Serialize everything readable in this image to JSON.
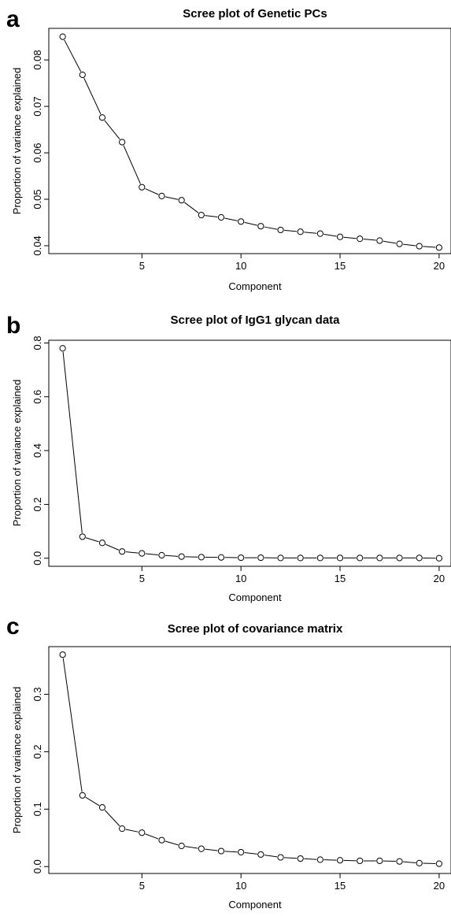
{
  "panels": [
    {
      "letter": "a",
      "chart_data": {
        "type": "line",
        "title": "Scree plot of Genetic PCs",
        "xlabel": "Component",
        "ylabel": "Proportion of variance explained",
        "x": [
          1,
          2,
          3,
          4,
          5,
          6,
          7,
          8,
          9,
          10,
          11,
          12,
          13,
          14,
          15,
          16,
          17,
          18,
          19,
          20
        ],
        "values": [
          0.085,
          0.0768,
          0.0676,
          0.0623,
          0.0526,
          0.0507,
          0.0498,
          0.0466,
          0.0461,
          0.0452,
          0.0442,
          0.0434,
          0.043,
          0.0426,
          0.0419,
          0.0415,
          0.0411,
          0.0404,
          0.0399,
          0.0396
        ],
        "xticks": [
          5,
          10,
          15,
          20
        ],
        "xtick_labels": [
          "5",
          "10",
          "15",
          "20"
        ],
        "yticks": [
          0.04,
          0.05,
          0.06,
          0.07,
          0.08
        ],
        "ytick_labels": [
          "0.04",
          "0.05",
          "0.06",
          "0.07",
          "0.08"
        ],
        "xlim": [
          0.3,
          20.6
        ],
        "ylim": [
          0.0383,
          0.0868
        ],
        "grid": false,
        "markers": "open-circle"
      }
    },
    {
      "letter": "b",
      "chart_data": {
        "type": "line",
        "title": "Scree plot of IgG1 glycan data",
        "xlabel": "Component",
        "ylabel": "Proportion of variance explained",
        "x": [
          1,
          2,
          3,
          4,
          5,
          6,
          7,
          8,
          9,
          10,
          11,
          12,
          13,
          14,
          15,
          16,
          17,
          18,
          19,
          20
        ],
        "values": [
          0.78,
          0.08,
          0.057,
          0.025,
          0.018,
          0.011,
          0.006,
          0.004,
          0.003,
          0.002,
          0.002,
          0.001,
          0.001,
          0.001,
          0.001,
          0.001,
          0.001,
          0.001,
          0.001,
          0.0
        ],
        "xticks": [
          5,
          10,
          15,
          20
        ],
        "xtick_labels": [
          "5",
          "10",
          "15",
          "20"
        ],
        "yticks": [
          0.0,
          0.2,
          0.4,
          0.6,
          0.8
        ],
        "ytick_labels": [
          "0.0",
          "0.2",
          "0.4",
          "0.6",
          "0.8"
        ],
        "xlim": [
          0.3,
          20.6
        ],
        "ylim": [
          -0.03,
          0.81
        ],
        "grid": false,
        "markers": "open-circle"
      }
    },
    {
      "letter": "c",
      "chart_data": {
        "type": "line",
        "title": "Scree plot of covariance matrix",
        "xlabel": "Component",
        "ylabel": "Proportion of variance explained",
        "x": [
          1,
          2,
          3,
          4,
          5,
          6,
          7,
          8,
          9,
          10,
          11,
          12,
          13,
          14,
          15,
          16,
          17,
          18,
          19,
          20
        ],
        "values": [
          0.369,
          0.124,
          0.103,
          0.066,
          0.059,
          0.046,
          0.036,
          0.031,
          0.027,
          0.025,
          0.021,
          0.016,
          0.014,
          0.012,
          0.011,
          0.01,
          0.01,
          0.009,
          0.006,
          0.005
        ],
        "xticks": [
          5,
          10,
          15,
          20
        ],
        "xtick_labels": [
          "5",
          "10",
          "15",
          "20"
        ],
        "yticks": [
          0.0,
          0.1,
          0.2,
          0.3
        ],
        "ytick_labels": [
          "0.0",
          "0.1",
          "0.2",
          "0.3"
        ],
        "xlim": [
          0.3,
          20.6
        ],
        "ylim": [
          -0.012,
          0.383
        ],
        "grid": false,
        "markers": "open-circle"
      }
    }
  ]
}
